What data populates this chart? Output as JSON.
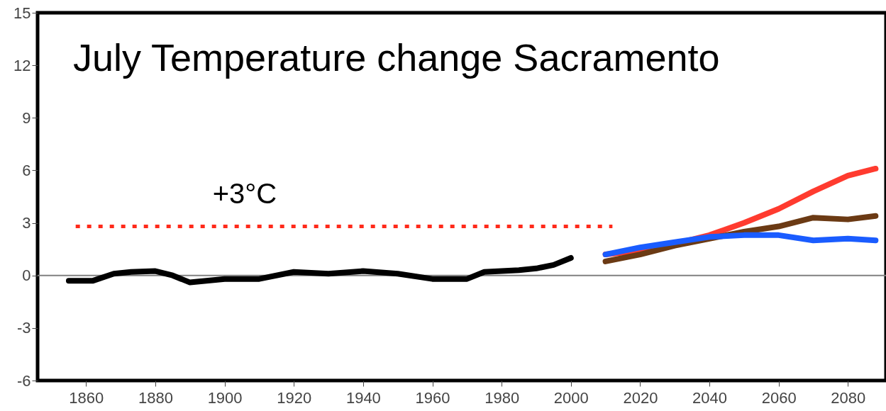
{
  "chart_data": {
    "type": "line",
    "title": "July Temperature change  Sacramento",
    "xlim": [
      1846,
      2091
    ],
    "xticks": [
      1860,
      1880,
      1900,
      1920,
      1940,
      1960,
      1980,
      2000,
      2020,
      2040,
      2060,
      2080
    ],
    "ylim": [
      -6,
      15
    ],
    "yticks": [
      -6,
      -3,
      0,
      3,
      6,
      9,
      12,
      15
    ],
    "series": [
      {
        "color": "#ff2a1a",
        "line_style": "dotted",
        "x": [
          1857,
          2012
        ],
        "values": [
          2.8,
          2.8
        ]
      },
      {
        "color": "#000000",
        "x": [
          1855,
          1862,
          1868,
          1873,
          1880,
          1885,
          1890,
          1900,
          1910,
          1920,
          1930,
          1940,
          1950,
          1960,
          1970,
          1975,
          1985,
          1990,
          1995,
          2000
        ],
        "values": [
          -0.3,
          -0.3,
          0.1,
          0.2,
          0.25,
          0,
          -0.4,
          -0.2,
          -0.2,
          0.2,
          0.1,
          0.25,
          0.1,
          -0.2,
          -0.2,
          0.2,
          0.3,
          0.4,
          0.6,
          1.0
        ]
      },
      {
        "color": "#ff3b2f",
        "x": [
          2010,
          2020,
          2030,
          2040,
          2050,
          2060,
          2070,
          2080,
          2088
        ],
        "values": [
          1.2,
          1.4,
          1.8,
          2.3,
          3.0,
          3.8,
          4.8,
          5.7,
          6.1
        ]
      },
      {
        "color": "#6b3a14",
        "x": [
          2010,
          2020,
          2030,
          2040,
          2050,
          2060,
          2070,
          2080,
          2088
        ],
        "values": [
          0.8,
          1.2,
          1.7,
          2.1,
          2.5,
          2.8,
          3.3,
          3.2,
          3.4
        ]
      },
      {
        "color": "#1a5cff",
        "x": [
          2010,
          2020,
          2030,
          2040,
          2050,
          2060,
          2070,
          2080,
          2088
        ],
        "values": [
          1.2,
          1.6,
          1.9,
          2.2,
          2.3,
          2.3,
          2.0,
          2.1,
          2.0
        ]
      }
    ],
    "ref_lines": [
      {
        "axis": "y",
        "value": 0,
        "color": "#808080"
      }
    ],
    "annotations": [
      "+3°C"
    ]
  }
}
